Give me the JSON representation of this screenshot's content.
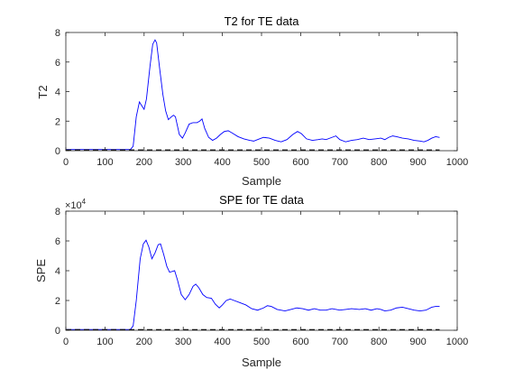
{
  "figure_colors": {
    "background": "#ffffff",
    "axes": "#262626",
    "series": "#0000ff",
    "limit": "#000000"
  },
  "chart_data": [
    {
      "type": "line",
      "title": "T2 for TE data",
      "xlabel": "Sample",
      "ylabel": "T2",
      "xlim": [
        0,
        1000
      ],
      "ylim": [
        0,
        8
      ],
      "xticks": [
        0,
        100,
        200,
        300,
        400,
        500,
        600,
        700,
        800,
        900,
        1000
      ],
      "yticks": [
        0,
        2,
        4,
        6,
        8
      ],
      "ytick_labels": [
        "0",
        "2",
        "4",
        "6",
        "8"
      ],
      "exponent": "",
      "grid": false,
      "series": [
        {
          "color": "#0000ff",
          "style": "solid",
          "points": [
            [
              0,
              0.08
            ],
            [
              100,
              0.08
            ],
            [
              165,
              0.08
            ],
            [
              172,
              0.3
            ],
            [
              180,
              2.3
            ],
            [
              188,
              3.3
            ],
            [
              195,
              3.0
            ],
            [
              200,
              2.8
            ],
            [
              206,
              3.5
            ],
            [
              215,
              5.7
            ],
            [
              222,
              7.2
            ],
            [
              228,
              7.5
            ],
            [
              232,
              7.3
            ],
            [
              240,
              5.5
            ],
            [
              248,
              3.8
            ],
            [
              255,
              2.7
            ],
            [
              262,
              2.1
            ],
            [
              270,
              2.3
            ],
            [
              275,
              2.4
            ],
            [
              280,
              2.3
            ],
            [
              290,
              1.1
            ],
            [
              298,
              0.85
            ],
            [
              305,
              1.2
            ],
            [
              315,
              1.8
            ],
            [
              325,
              1.9
            ],
            [
              335,
              1.9
            ],
            [
              342,
              2.0
            ],
            [
              348,
              2.15
            ],
            [
              355,
              1.5
            ],
            [
              365,
              0.9
            ],
            [
              375,
              0.7
            ],
            [
              385,
              0.85
            ],
            [
              395,
              1.1
            ],
            [
              405,
              1.3
            ],
            [
              415,
              1.35
            ],
            [
              425,
              1.2
            ],
            [
              440,
              0.95
            ],
            [
              455,
              0.8
            ],
            [
              470,
              0.7
            ],
            [
              480,
              0.65
            ],
            [
              490,
              0.75
            ],
            [
              505,
              0.9
            ],
            [
              520,
              0.85
            ],
            [
              535,
              0.7
            ],
            [
              550,
              0.6
            ],
            [
              565,
              0.75
            ],
            [
              580,
              1.1
            ],
            [
              592,
              1.3
            ],
            [
              602,
              1.15
            ],
            [
              615,
              0.8
            ],
            [
              630,
              0.7
            ],
            [
              645,
              0.75
            ],
            [
              655,
              0.8
            ],
            [
              665,
              0.75
            ],
            [
              680,
              0.9
            ],
            [
              690,
              1.0
            ],
            [
              700,
              0.75
            ],
            [
              715,
              0.6
            ],
            [
              730,
              0.7
            ],
            [
              745,
              0.75
            ],
            [
              760,
              0.85
            ],
            [
              775,
              0.75
            ],
            [
              790,
              0.8
            ],
            [
              805,
              0.85
            ],
            [
              815,
              0.75
            ],
            [
              825,
              0.9
            ],
            [
              835,
              1.0
            ],
            [
              845,
              0.95
            ],
            [
              860,
              0.85
            ],
            [
              875,
              0.8
            ],
            [
              890,
              0.7
            ],
            [
              905,
              0.65
            ],
            [
              915,
              0.6
            ],
            [
              925,
              0.7
            ],
            [
              935,
              0.85
            ],
            [
              945,
              0.95
            ],
            [
              955,
              0.9
            ]
          ]
        },
        {
          "color": "#000000",
          "style": "dashed",
          "points": [
            [
              0,
              0.05
            ],
            [
              955,
              0.05
            ]
          ]
        }
      ]
    },
    {
      "type": "line",
      "title": "SPE for TE data",
      "xlabel": "Sample",
      "ylabel": "SPE",
      "xlim": [
        0,
        1000
      ],
      "ylim": [
        0,
        80000
      ],
      "xticks": [
        0,
        100,
        200,
        300,
        400,
        500,
        600,
        700,
        800,
        900,
        1000
      ],
      "yticks": [
        0,
        20000,
        40000,
        60000,
        80000
      ],
      "ytick_labels": [
        "0",
        "2",
        "4",
        "6",
        "8"
      ],
      "exponent_base": "×10",
      "exponent_power": "4",
      "grid": false,
      "series": [
        {
          "color": "#0000ff",
          "style": "solid",
          "points": [
            [
              0,
              500
            ],
            [
              100,
              500
            ],
            [
              165,
              500
            ],
            [
              172,
              3000
            ],
            [
              180,
              20000
            ],
            [
              190,
              48000
            ],
            [
              198,
              58000
            ],
            [
              205,
              60500
            ],
            [
              212,
              56000
            ],
            [
              220,
              48000
            ],
            [
              228,
              52000
            ],
            [
              236,
              57500
            ],
            [
              242,
              58000
            ],
            [
              250,
              51000
            ],
            [
              258,
              43000
            ],
            [
              265,
              39000
            ],
            [
              272,
              39500
            ],
            [
              278,
              40000
            ],
            [
              285,
              34000
            ],
            [
              295,
              24000
            ],
            [
              305,
              20500
            ],
            [
              315,
              24000
            ],
            [
              325,
              29500
            ],
            [
              332,
              31000
            ],
            [
              340,
              28500
            ],
            [
              350,
              24000
            ],
            [
              360,
              22000
            ],
            [
              372,
              21500
            ],
            [
              382,
              17500
            ],
            [
              392,
              15000
            ],
            [
              400,
              17000
            ],
            [
              410,
              20000
            ],
            [
              420,
              21000
            ],
            [
              430,
              20000
            ],
            [
              445,
              18500
            ],
            [
              460,
              17000
            ],
            [
              475,
              14500
            ],
            [
              490,
              13500
            ],
            [
              505,
              15000
            ],
            [
              515,
              16500
            ],
            [
              525,
              16000
            ],
            [
              540,
              14000
            ],
            [
              560,
              13000
            ],
            [
              575,
              14000
            ],
            [
              590,
              15000
            ],
            [
              605,
              14500
            ],
            [
              620,
              13500
            ],
            [
              635,
              14500
            ],
            [
              650,
              13500
            ],
            [
              665,
              13500
            ],
            [
              680,
              14500
            ],
            [
              700,
              13500
            ],
            [
              715,
              14000
            ],
            [
              730,
              14500
            ],
            [
              750,
              14000
            ],
            [
              765,
              14500
            ],
            [
              780,
              13500
            ],
            [
              795,
              14500
            ],
            [
              805,
              14000
            ],
            [
              815,
              13000
            ],
            [
              830,
              13500
            ],
            [
              845,
              15000
            ],
            [
              860,
              15500
            ],
            [
              875,
              14500
            ],
            [
              890,
              13500
            ],
            [
              905,
              13000
            ],
            [
              920,
              13500
            ],
            [
              935,
              15500
            ],
            [
              945,
              16000
            ],
            [
              955,
              16000
            ]
          ]
        },
        {
          "color": "#000000",
          "style": "dashed",
          "points": [
            [
              0,
              400
            ],
            [
              955,
              400
            ]
          ]
        }
      ]
    }
  ]
}
